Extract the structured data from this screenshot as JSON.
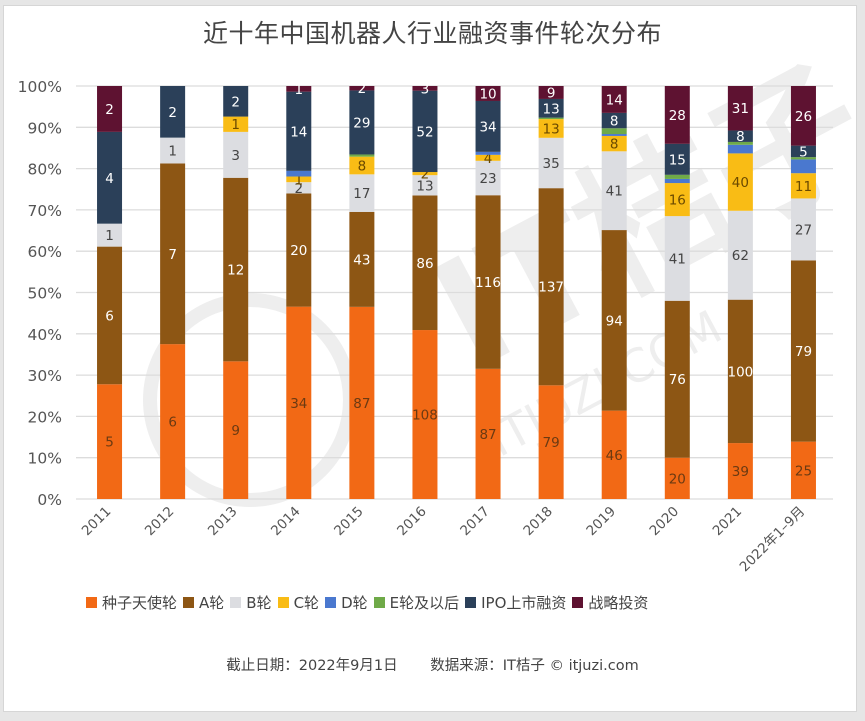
{
  "chart_data": {
    "type": "bar",
    "stacked": true,
    "normalized": true,
    "title": "近十年中国机器人行业融资事件轮次分布",
    "xlabel": "",
    "ylabel": "",
    "ylim": [
      0,
      100
    ],
    "yticks": [
      "0%",
      "10%",
      "20%",
      "30%",
      "40%",
      "50%",
      "60%",
      "70%",
      "80%",
      "90%",
      "100%"
    ],
    "grid": true,
    "legend_position": "bottom",
    "categories": [
      "2011",
      "2012",
      "2013",
      "2014",
      "2015",
      "2016",
      "2017",
      "2018",
      "2019",
      "2020",
      "2021",
      "2022年1–9月"
    ],
    "series": [
      {
        "name": "种子天使轮",
        "color": "#f26915",
        "label_color": "#6b3a12",
        "values": [
          5,
          6,
          9,
          34,
          87,
          108,
          87,
          79,
          46,
          20,
          39,
          25
        ],
        "labels_shown": [
          true,
          true,
          true,
          true,
          true,
          true,
          true,
          true,
          true,
          true,
          true,
          true
        ]
      },
      {
        "name": "A轮",
        "color": "#8d5614",
        "label_color": "#ffffff",
        "values": [
          6,
          7,
          12,
          20,
          43,
          86,
          116,
          137,
          94,
          76,
          100,
          79
        ],
        "labels_shown": [
          true,
          true,
          true,
          true,
          true,
          true,
          true,
          true,
          true,
          true,
          true,
          true
        ]
      },
      {
        "name": "B轮",
        "color": "#dcdde1",
        "label_color": "#444444",
        "values": [
          1,
          1,
          3,
          2,
          17,
          13,
          23,
          35,
          41,
          41,
          62,
          27
        ],
        "labels_shown": [
          true,
          true,
          true,
          true,
          true,
          true,
          true,
          true,
          true,
          true,
          true,
          true
        ]
      },
      {
        "name": "C轮",
        "color": "#f9bc15",
        "label_color": "#6b4a00",
        "values": [
          0,
          0,
          1,
          1,
          8,
          2,
          4,
          13,
          8,
          16,
          40,
          11
        ],
        "labels_shown": [
          false,
          false,
          true,
          true,
          true,
          true,
          true,
          true,
          true,
          true,
          true,
          true
        ]
      },
      {
        "name": "D轮",
        "color": "#4a78cf",
        "label_color": "#ffffff",
        "values": [
          0,
          0,
          0,
          1,
          0,
          0,
          2,
          0,
          1,
          2,
          6,
          6
        ],
        "labels_shown": [
          false,
          false,
          false,
          false,
          false,
          false,
          false,
          false,
          false,
          false,
          false,
          false
        ]
      },
      {
        "name": "E轮及以后",
        "color": "#6faa48",
        "label_color": "#ffffff",
        "values": [
          0,
          0,
          0,
          0,
          1,
          0,
          0,
          1,
          3,
          2,
          2,
          1
        ],
        "labels_shown": [
          false,
          false,
          false,
          false,
          false,
          false,
          false,
          false,
          false,
          false,
          false,
          false
        ]
      },
      {
        "name": "IPO上市融资",
        "color": "#2b4059",
        "label_color": "#ffffff",
        "values": [
          4,
          2,
          2,
          14,
          29,
          52,
          34,
          13,
          8,
          15,
          8,
          5
        ],
        "labels_shown": [
          true,
          true,
          true,
          true,
          true,
          true,
          true,
          true,
          true,
          true,
          true,
          true
        ]
      },
      {
        "name": "战略投资",
        "color": "#5e1231",
        "label_color": "#ffffff",
        "values": [
          2,
          0,
          0,
          1,
          2,
          3,
          10,
          9,
          14,
          28,
          31,
          26
        ],
        "labels_shown": [
          true,
          false,
          false,
          true,
          true,
          true,
          true,
          true,
          true,
          true,
          true,
          true
        ]
      }
    ]
  },
  "footer": {
    "cutoff": "截止日期：2022年9月1日",
    "source": "数据来源：IT桔子 © itjuzi.com"
  },
  "watermark": {
    "brand": "IT桔子",
    "domain": "ITJUZI.COM"
  }
}
